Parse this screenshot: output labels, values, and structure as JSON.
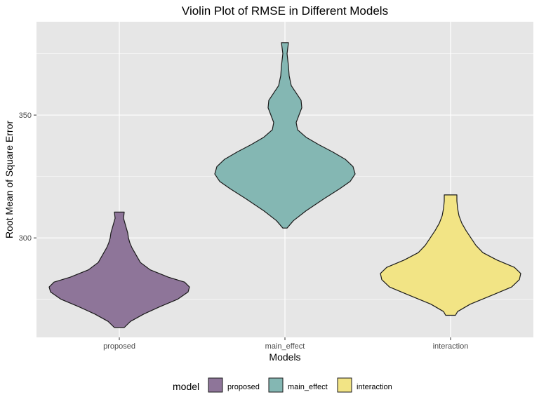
{
  "chart_data": {
    "type": "violin",
    "title": "Violin Plot of RMSE in Different Models",
    "xlabel": "Models",
    "ylabel": "Root Mean of Square Error",
    "categories": [
      "proposed",
      "main_effect",
      "interaction"
    ],
    "ylim": [
      259.5,
      388
    ],
    "yticks": [
      300,
      350
    ],
    "grid": true,
    "legend": {
      "title": "model",
      "position": "bottom",
      "entries": [
        "proposed",
        "main_effect",
        "interaction"
      ]
    },
    "colors": {
      "proposed": "#8e7599",
      "main_effect": "#84b7b3",
      "interaction": "#f2e485",
      "panel": "#e6e6e6",
      "outline": "#1a1a1a",
      "grid": "#ffffff"
    },
    "series": [
      {
        "name": "proposed",
        "min": 263.5,
        "max": 310.5,
        "density": [
          [
            263.5,
            0.07
          ],
          [
            266,
            0.16
          ],
          [
            269,
            0.35
          ],
          [
            272,
            0.58
          ],
          [
            275,
            0.83
          ],
          [
            278,
            0.98
          ],
          [
            280,
            1.0
          ],
          [
            282,
            0.93
          ],
          [
            284,
            0.7
          ],
          [
            287,
            0.44
          ],
          [
            290,
            0.3
          ],
          [
            293,
            0.24
          ],
          [
            296,
            0.18
          ],
          [
            298,
            0.15
          ],
          [
            300,
            0.13
          ],
          [
            302,
            0.12
          ],
          [
            304,
            0.1
          ],
          [
            306,
            0.08
          ],
          [
            308,
            0.06
          ],
          [
            310.5,
            0.07
          ]
        ]
      },
      {
        "name": "main_effect",
        "min": 304,
        "max": 379.5,
        "density": [
          [
            304,
            0.03
          ],
          [
            307,
            0.12
          ],
          [
            311,
            0.3
          ],
          [
            316,
            0.56
          ],
          [
            320,
            0.78
          ],
          [
            323,
            0.93
          ],
          [
            326,
            1.0
          ],
          [
            329,
            0.97
          ],
          [
            332,
            0.86
          ],
          [
            335,
            0.68
          ],
          [
            338,
            0.48
          ],
          [
            341,
            0.3
          ],
          [
            344,
            0.18
          ],
          [
            347,
            0.16
          ],
          [
            350,
            0.2
          ],
          [
            353,
            0.24
          ],
          [
            356,
            0.23
          ],
          [
            359,
            0.16
          ],
          [
            362,
            0.09
          ],
          [
            366,
            0.06
          ],
          [
            370,
            0.05
          ],
          [
            375,
            0.03
          ],
          [
            379.5,
            0.05
          ]
        ]
      },
      {
        "name": "interaction",
        "min": 268.5,
        "max": 317.5,
        "density": [
          [
            268.5,
            0.07
          ],
          [
            270,
            0.1
          ],
          [
            273,
            0.28
          ],
          [
            277,
            0.62
          ],
          [
            280,
            0.87
          ],
          [
            283,
            0.98
          ],
          [
            285.5,
            1.0
          ],
          [
            288,
            0.91
          ],
          [
            291,
            0.66
          ],
          [
            294,
            0.46
          ],
          [
            297,
            0.36
          ],
          [
            300,
            0.29
          ],
          [
            303,
            0.22
          ],
          [
            306,
            0.16
          ],
          [
            309,
            0.12
          ],
          [
            312,
            0.1
          ],
          [
            315,
            0.09
          ],
          [
            317.5,
            0.09
          ]
        ]
      }
    ]
  }
}
